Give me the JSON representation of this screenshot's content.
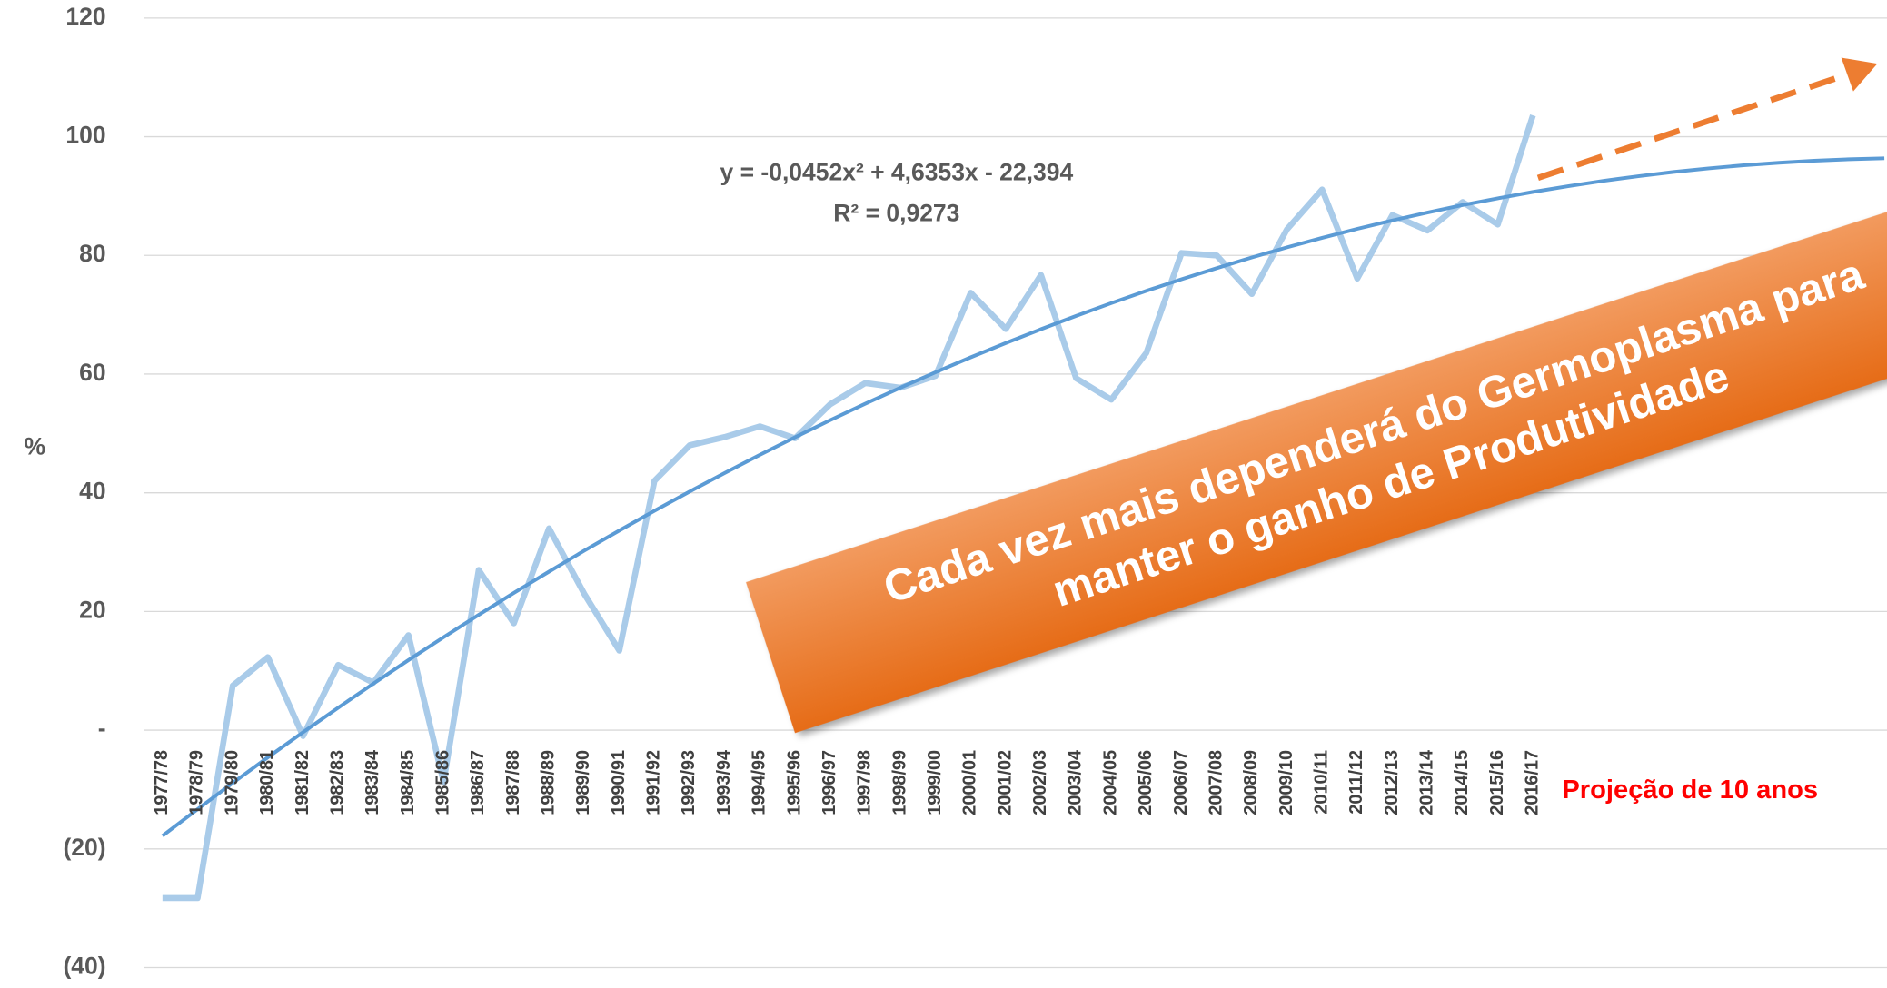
{
  "chart_data": {
    "type": "line",
    "y_label": "%",
    "categories": [
      "1977/78",
      "1978/79",
      "1979/80",
      "1980/81",
      "1981/82",
      "1982/83",
      "1983/84",
      "1984/85",
      "1985/86",
      "1986/87",
      "1987/88",
      "1988/89",
      "1989/90",
      "1990/91",
      "1991/92",
      "1992/93",
      "1993/94",
      "1994/95",
      "1995/96",
      "1996/97",
      "1997/98",
      "1998/99",
      "1999/00",
      "2000/01",
      "2001/02",
      "2002/03",
      "2003/04",
      "2004/05",
      "2005/06",
      "2006/07",
      "2007/08",
      "2008/09",
      "2009/10",
      "2010/11",
      "2011/12",
      "2012/13",
      "2013/14",
      "2014/15",
      "2015/16",
      "2016/17",
      null,
      null,
      null,
      null,
      null,
      null,
      null,
      null,
      null,
      null
    ],
    "series": [
      {
        "color": "#a9cbe9",
        "values": [
          -28.3,
          -28.3,
          7.5,
          12.3,
          -1,
          11,
          8,
          16,
          -8.7,
          27,
          18,
          34,
          23,
          13.4,
          42,
          48,
          49.4,
          51.2,
          49.2,
          54.9,
          58.5,
          57.7,
          59.7,
          73.7,
          67.6,
          76.7,
          59.3,
          55.7,
          63.6,
          80.4,
          80,
          73.5,
          84.4,
          91.1,
          76.1,
          86.8,
          84.2,
          89,
          85.2,
          103.6,
          null,
          null,
          null,
          null,
          null,
          null,
          null,
          null,
          null,
          null
        ]
      },
      {
        "color": "#5b9bd5",
        "values": [
          -17.8,
          -13.3,
          -8.9,
          -4.58,
          -0.35,
          3.79,
          7.84,
          11.8,
          15.66,
          19.44,
          23.13,
          26.72,
          30.23,
          33.64,
          36.97,
          40.2,
          43.34,
          46.4,
          49.36,
          52.23,
          55.01,
          57.71,
          60.31,
          62.82,
          65.24,
          67.57,
          69.81,
          71.96,
          74.02,
          75.99,
          77.86,
          79.65,
          81.35,
          82.95,
          84.47,
          85.9,
          87.23,
          88.48,
          89.63,
          90.7,
          91.67,
          92.56,
          93.35,
          94.05,
          94.66,
          95.19,
          95.62,
          95.96,
          96.21,
          96.37
        ]
      }
    ],
    "ylim": [
      -40,
      120
    ],
    "yticks": [
      {
        "value": -40,
        "label": "(40)"
      },
      {
        "value": -20,
        "label": "(20)"
      },
      {
        "value": 0,
        "label": "-"
      },
      20,
      40,
      60,
      80,
      100,
      120
    ],
    "grid": true,
    "equation": "y = -0,0452x² + 4,6353x - 22,394",
    "r_squared": "R² = 0,9273",
    "projection_label": "Projeção de 10 anos",
    "banner": [
      "Cada vez mais dependerá do Germoplasma para",
      "manter o ganho de Produtividade"
    ]
  }
}
